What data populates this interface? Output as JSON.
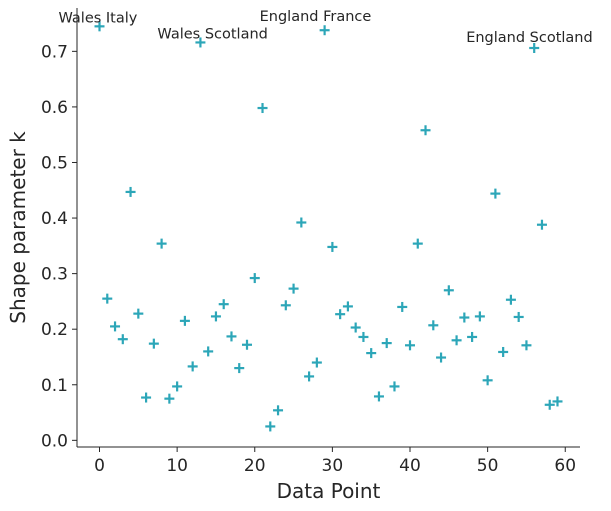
{
  "chart_data": {
    "type": "scatter",
    "title": "",
    "xlabel": "Data Point",
    "ylabel": "Shape parameter k",
    "xlim": [
      -2.9,
      61.9
    ],
    "ylim": [
      -0.012,
      0.778
    ],
    "xticks": [
      0,
      10,
      20,
      30,
      40,
      50,
      60
    ],
    "yticks": [
      0.0,
      0.1,
      0.2,
      0.3,
      0.4,
      0.5,
      0.6,
      0.7
    ],
    "ytick_labels": [
      "0.0",
      "0.1",
      "0.2",
      "0.3",
      "0.4",
      "0.5",
      "0.6",
      "0.7"
    ],
    "grid": false,
    "marker": "plus",
    "color": "#2ca6b8",
    "series": [
      {
        "x": [
          0,
          1,
          2,
          3,
          4,
          5,
          6,
          7,
          8,
          9,
          10,
          11,
          12,
          13,
          14,
          15,
          16,
          17,
          18,
          19,
          20,
          21,
          22,
          23,
          24,
          25,
          26,
          27,
          28,
          29,
          30,
          31,
          32,
          33,
          34,
          35,
          36,
          37,
          38,
          39,
          40,
          41,
          42,
          43,
          44,
          45,
          46,
          47,
          48,
          49,
          50,
          51,
          52,
          53,
          54,
          55,
          56,
          57,
          58,
          59
        ],
        "y": [
          0.745,
          0.255,
          0.205,
          0.182,
          0.447,
          0.228,
          0.077,
          0.174,
          0.354,
          0.075,
          0.097,
          0.215,
          0.133,
          0.716,
          0.16,
          0.223,
          0.245,
          0.187,
          0.13,
          0.172,
          0.292,
          0.598,
          0.025,
          0.054,
          0.243,
          0.273,
          0.392,
          0.115,
          0.14,
          0.738,
          0.348,
          0.227,
          0.241,
          0.203,
          0.186,
          0.157,
          0.079,
          0.175,
          0.097,
          0.24,
          0.171,
          0.354,
          0.558,
          0.207,
          0.149,
          0.27,
          0.18,
          0.221,
          0.186,
          0.223,
          0.108,
          0.444,
          0.159,
          0.253,
          0.222,
          0.171,
          0.706,
          0.388,
          0.064,
          0.07
        ]
      }
    ],
    "annotations": [
      {
        "text": "Wales Italy",
        "x": 0,
        "y": 0.745
      },
      {
        "text": "Wales Scotland",
        "x": 13,
        "y": 0.716
      },
      {
        "text": "England France",
        "x": 29,
        "y": 0.738
      },
      {
        "text": "England Scotland",
        "x": 56,
        "y": 0.706
      }
    ]
  }
}
